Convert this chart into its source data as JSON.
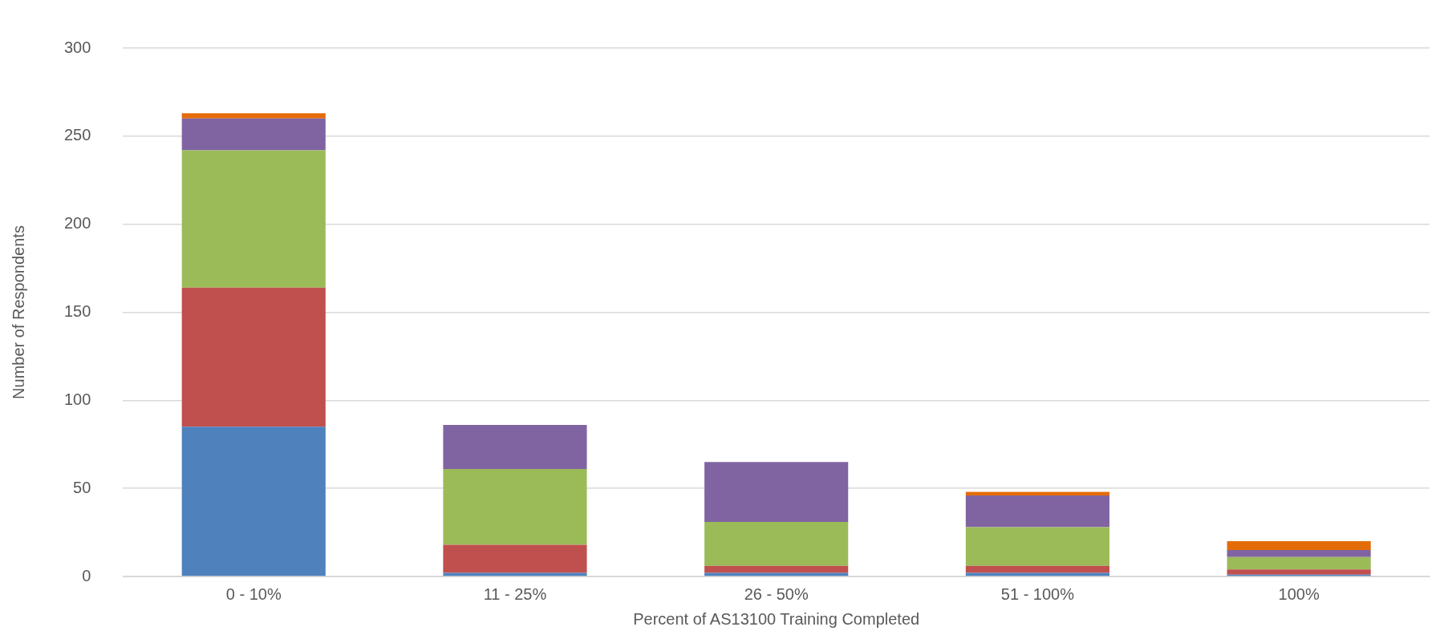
{
  "chart_data": {
    "type": "bar",
    "stacked": true,
    "xlabel": "Percent of AS13100 Training Completed",
    "ylabel": "Number of Respondents",
    "categories": [
      "0 - 10%",
      "11 - 25%",
      "26 - 50%",
      "51 - 100%",
      "100%"
    ],
    "series": [
      {
        "color": "#4f81bd",
        "values": [
          85,
          2,
          2,
          2,
          1
        ]
      },
      {
        "color": "#c0504d",
        "values": [
          79,
          16,
          4,
          4,
          3
        ]
      },
      {
        "color": "#9bbb59",
        "values": [
          78,
          43,
          25,
          22,
          7
        ]
      },
      {
        "color": "#8064a2",
        "values": [
          18,
          25,
          34,
          18,
          4
        ]
      },
      {
        "color": "#e36c09",
        "values": [
          3,
          0,
          0,
          2,
          5
        ]
      }
    ],
    "ylim": [
      0,
      300
    ],
    "yticks": [
      0,
      50,
      100,
      150,
      200,
      250,
      300
    ],
    "grid": "y",
    "legend": false
  }
}
